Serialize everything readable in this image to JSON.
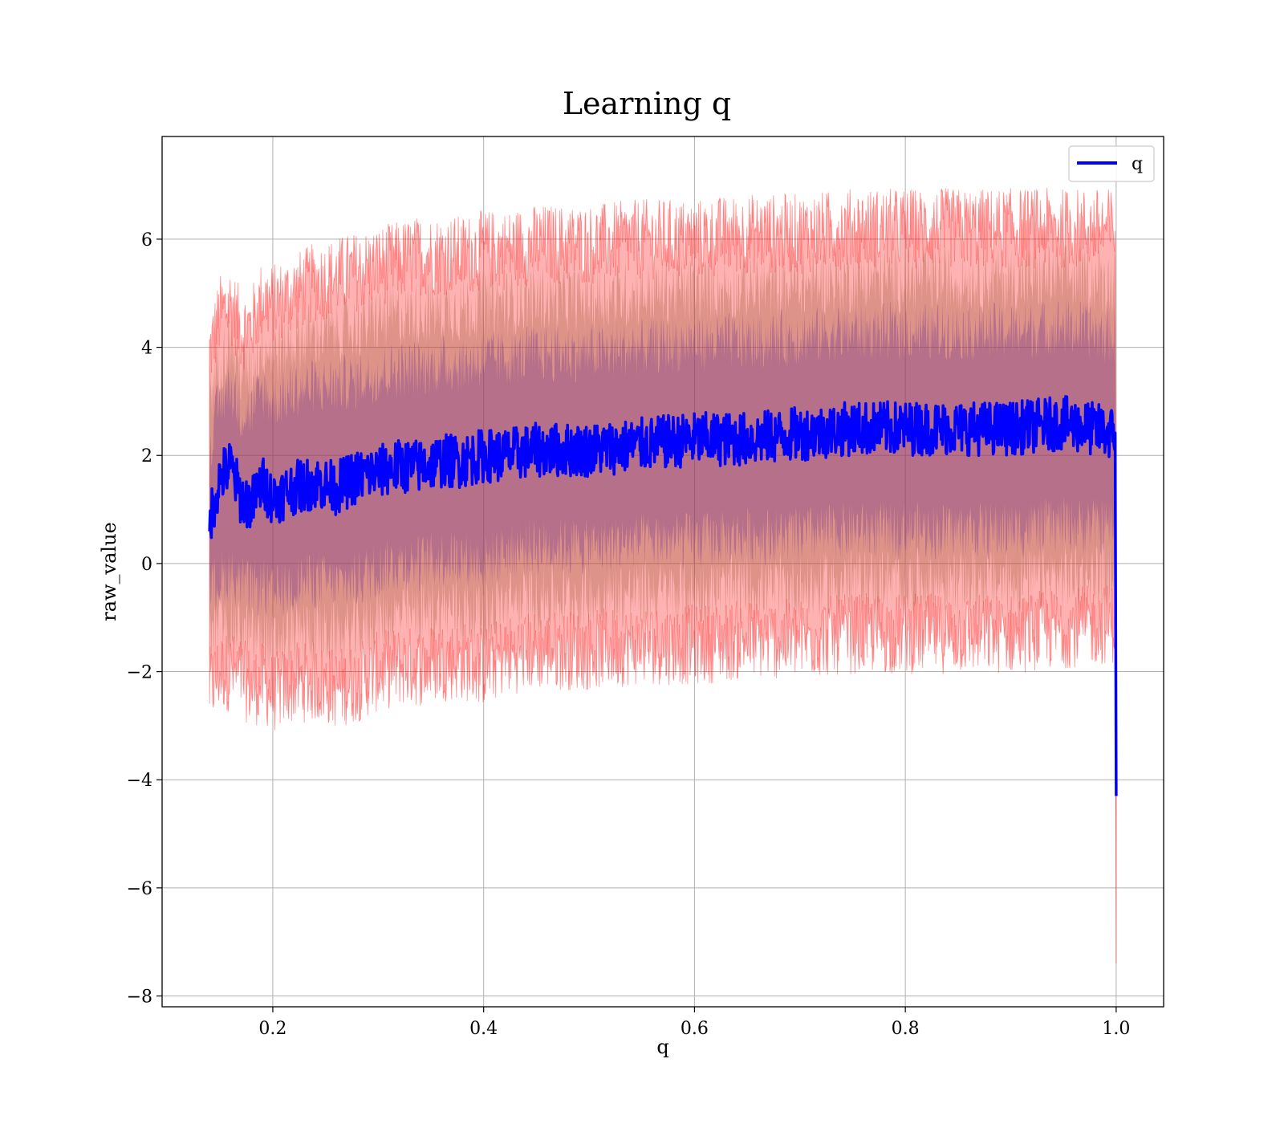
{
  "chart_data": {
    "type": "line",
    "title": "Learning q",
    "xlabel": "q",
    "ylabel": "raw_value",
    "xlim": [
      0.095,
      1.045
    ],
    "ylim": [
      -8.2,
      7.9
    ],
    "xticks": [
      0.2,
      0.4,
      0.6,
      0.8,
      1.0
    ],
    "xtick_labels": [
      "0.2",
      "0.4",
      "0.6",
      "0.8",
      "1.0"
    ],
    "yticks": [
      -8,
      -6,
      -4,
      -2,
      0,
      2,
      4,
      6
    ],
    "ytick_labels": [
      "−8",
      "−6",
      "−4",
      "−2",
      "0",
      "2",
      "4",
      "6"
    ],
    "grid": true,
    "legend": {
      "placement": "top-right",
      "entries": [
        "q"
      ]
    },
    "colors": {
      "mean_line": "#0000ff",
      "band": "#ff0000",
      "inner_band": "#7a3b8c"
    },
    "series": [
      {
        "name": "q",
        "style": "mean line with shaded spread bands",
        "x": [
          0.14,
          0.15,
          0.16,
          0.17,
          0.18,
          0.19,
          0.2,
          0.22,
          0.24,
          0.26,
          0.28,
          0.3,
          0.32,
          0.34,
          0.36,
          0.38,
          0.4,
          0.42,
          0.45,
          0.5,
          0.55,
          0.6,
          0.65,
          0.7,
          0.75,
          0.8,
          0.85,
          0.9,
          0.95,
          0.999,
          1.0
        ],
        "mean": [
          0.8,
          1.6,
          1.8,
          1.2,
          1.1,
          1.5,
          1.2,
          1.4,
          1.5,
          1.4,
          1.6,
          1.7,
          1.8,
          1.8,
          1.9,
          1.9,
          2.0,
          2.0,
          2.1,
          2.1,
          2.2,
          2.3,
          2.3,
          2.4,
          2.5,
          2.5,
          2.5,
          2.5,
          2.6,
          2.4,
          -4.3
        ],
        "band_low": [
          -2.3,
          -2.0,
          -2.0,
          -2.1,
          -2.3,
          -2.2,
          -2.4,
          -2.2,
          -2.2,
          -2.3,
          -2.2,
          -2.0,
          -1.9,
          -1.9,
          -1.8,
          -1.8,
          -1.9,
          -1.7,
          -1.6,
          -1.6,
          -1.5,
          -1.5,
          -1.4,
          -1.4,
          -1.3,
          -1.3,
          -1.3,
          -1.3,
          -1.2,
          -1.1,
          -7.4
        ],
        "band_high": [
          3.9,
          4.6,
          4.8,
          4.3,
          4.4,
          4.9,
          4.8,
          5.0,
          5.2,
          5.3,
          5.4,
          5.5,
          5.6,
          5.7,
          5.7,
          5.7,
          5.8,
          5.8,
          5.9,
          5.9,
          6.0,
          6.0,
          6.1,
          6.1,
          6.2,
          6.2,
          6.2,
          6.2,
          6.2,
          6.2,
          -1.0
        ],
        "inner_low": [
          -0.5,
          -0.3,
          -0.2,
          -0.4,
          -0.5,
          -0.4,
          -0.6,
          -0.4,
          -0.3,
          -0.4,
          -0.3,
          -0.1,
          0.0,
          0.0,
          0.1,
          0.1,
          0.0,
          0.2,
          0.3,
          0.3,
          0.4,
          0.4,
          0.5,
          0.5,
          0.6,
          0.6,
          0.6,
          0.6,
          0.7,
          0.7,
          -5.5
        ],
        "inner_high": [
          2.2,
          3.0,
          3.3,
          2.8,
          2.8,
          3.2,
          3.0,
          3.2,
          3.3,
          3.3,
          3.4,
          3.5,
          3.6,
          3.6,
          3.7,
          3.7,
          3.8,
          3.8,
          3.9,
          3.9,
          4.0,
          4.1,
          4.1,
          4.2,
          4.3,
          4.3,
          4.3,
          4.3,
          4.4,
          4.2,
          -3.0
        ]
      }
    ]
  }
}
